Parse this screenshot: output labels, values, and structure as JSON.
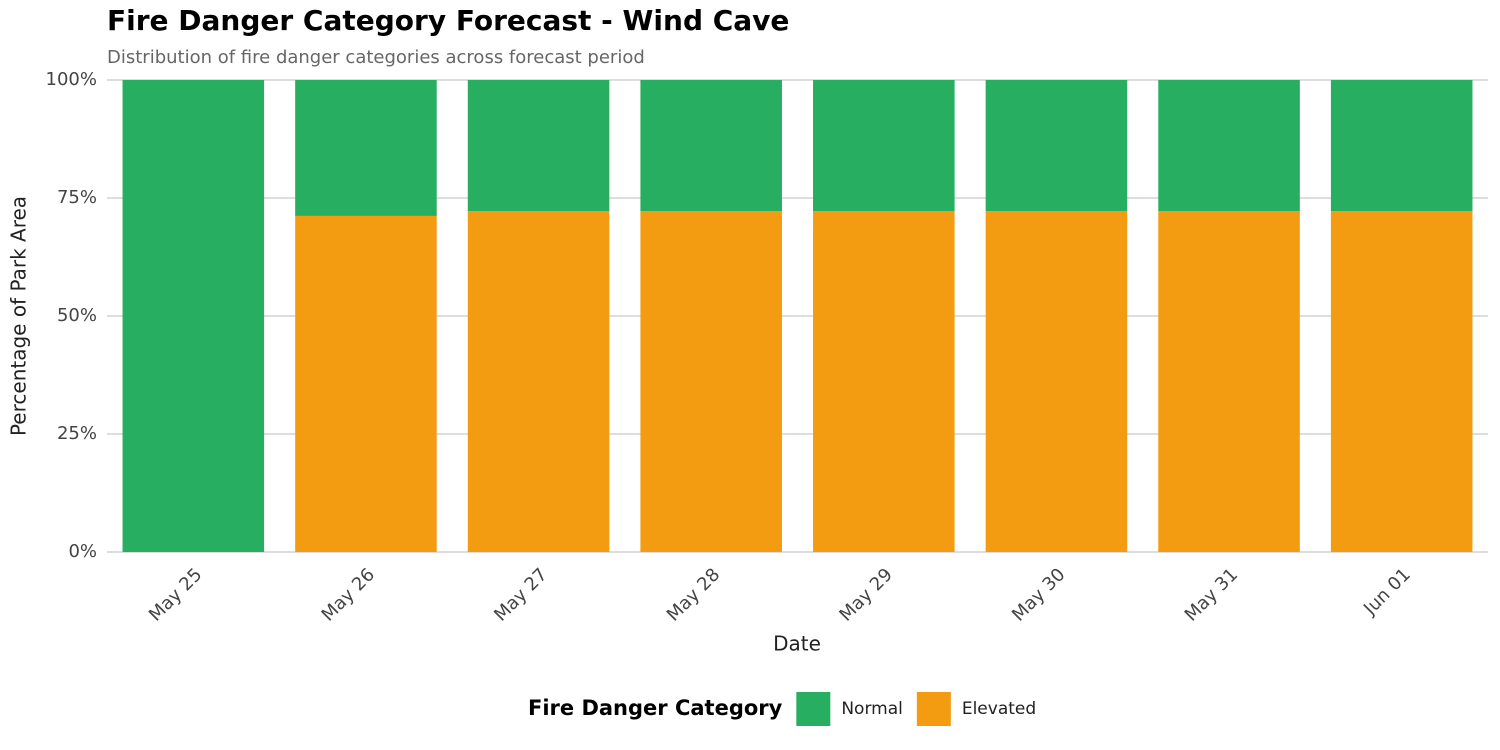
{
  "chart_data": {
    "type": "stacked_bar",
    "title": "Fire Danger Category Forecast - Wind Cave",
    "subtitle": "Distribution of fire danger categories across forecast period",
    "x_label": "Date",
    "y_label": "Percentage of Park Area",
    "legend_title": "Fire Danger Category",
    "categories": [
      "May 25",
      "May 26",
      "May 27",
      "May 28",
      "May 29",
      "May 30",
      "May 31",
      "Jun 01"
    ],
    "series": [
      {
        "name": "Normal",
        "color": "#27ae60",
        "values": [
          100,
          28.8,
          27.8,
          27.8,
          27.8,
          27.8,
          27.8,
          27.8
        ]
      },
      {
        "name": "Elevated",
        "color": "#f39c12",
        "values": [
          0,
          71.2,
          72.2,
          72.2,
          72.2,
          72.2,
          72.2,
          72.2
        ]
      }
    ],
    "ylim": [
      0,
      100
    ],
    "yticks": [
      {
        "value": 0,
        "label": "0%"
      },
      {
        "value": 25,
        "label": "25%"
      },
      {
        "value": 50,
        "label": "50%"
      },
      {
        "value": 75,
        "label": "75%"
      },
      {
        "value": 100,
        "label": "100%"
      }
    ],
    "grid": true,
    "legend_position": "bottom"
  }
}
